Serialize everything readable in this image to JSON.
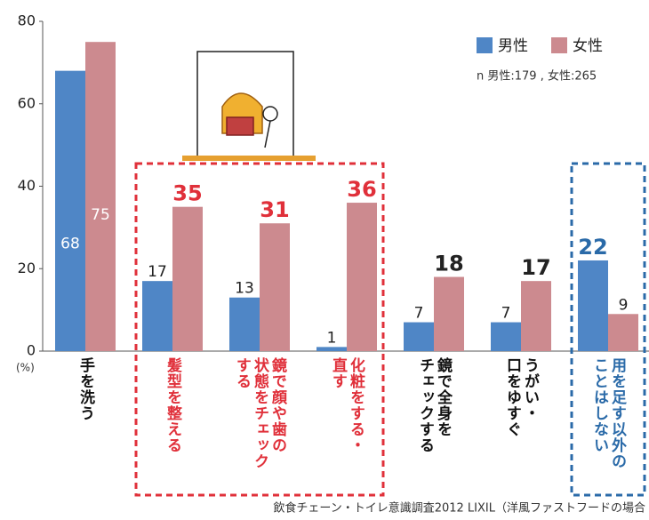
{
  "chart_data": {
    "type": "bar",
    "categories": [
      "手を洗う",
      "髪型を整える",
      "鏡で顔や歯の\n状態をチェック\nする",
      "化粧をする・\n直す",
      "鏡で全身を\nチェックする",
      "うがい・\n口をゆすぐ",
      "用を足す以外の\nことはしない"
    ],
    "series": [
      {
        "name": "男性",
        "color": "#4f86c6",
        "values": [
          68,
          17,
          13,
          1,
          7,
          7,
          22
        ]
      },
      {
        "name": "女性",
        "color": "#cc8a8f",
        "values": [
          75,
          35,
          31,
          36,
          18,
          17,
          9
        ]
      }
    ],
    "ylim": [
      0,
      80
    ],
    "yticks": [
      0,
      20,
      40,
      60,
      80
    ],
    "y_unit_label": "(%)",
    "note": "n  男性:179 , 女性:265",
    "source": "飲食チェーン・トイレ意識調査2012 LIXIL（洋風ファストフードの場合",
    "legend": "top-right",
    "highlight_groups": [
      {
        "categories": [
          1,
          2,
          3
        ],
        "color": "#e0303a"
      },
      {
        "categories": [
          6
        ],
        "color": "#2a6aa8"
      }
    ]
  }
}
